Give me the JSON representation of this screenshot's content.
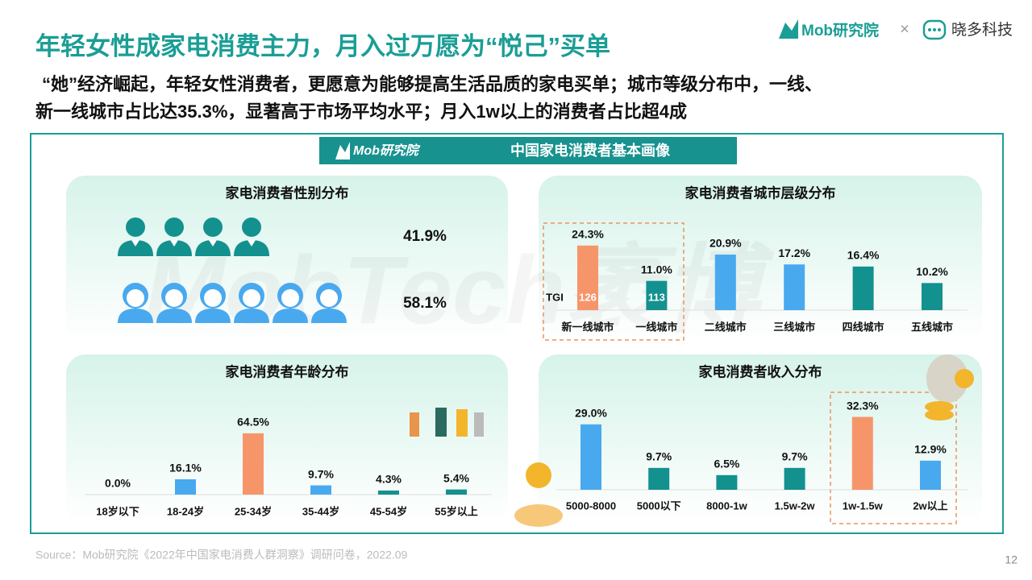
{
  "header": {
    "title": "年轻女性成家电消费主力，月入过万愿为“悦己”买单",
    "subtitle_lines": [
      "“她”经济崛起，年轻女性消费者，更愿意为能够提高生活品质的家电买单；城市等级分布中，一线、",
      "新一线城市占比达35.3%，显著高于市场平均水平；月入1w以上的消费者占比超4成"
    ],
    "brand": "Mob研究院",
    "separator": "×",
    "partner": "晓多科技"
  },
  "panel": {
    "title": "中国家电消费者基本画像",
    "brand": "Mob研究院",
    "watermark": "MobTech袤博"
  },
  "chart_data": [
    {
      "type": "pictogram",
      "title": "家电消费者性别分布",
      "categories": [
        null,
        null
      ],
      "values": [
        41.9,
        58.1
      ],
      "value_labels": [
        "41.9%",
        "58.1%"
      ],
      "colors": [
        "#13918f",
        "#49a9ef"
      ]
    },
    {
      "type": "bar",
      "title": "家电消费者城市层级分布",
      "categories": [
        "新一线城市",
        "一线城市",
        "二线城市",
        "三线城市",
        "四线城市",
        "五线城市"
      ],
      "values": [
        24.3,
        11.0,
        20.9,
        17.2,
        16.4,
        10.2
      ],
      "value_labels": [
        "24.3%",
        "11.0%",
        "20.9%",
        "17.2%",
        "16.4%",
        "10.2%"
      ],
      "colors": [
        "#f7956a",
        "#13918f",
        "#49a9ef",
        "#49a9ef",
        "#13918f",
        "#13918f"
      ],
      "tgi_label": "TGI",
      "tgi": [
        126,
        113,
        null,
        null,
        null,
        null
      ]
    },
    {
      "type": "bar",
      "title": "家电消费者年龄分布",
      "categories": [
        "18岁以下",
        "18-24岁",
        "25-34岁",
        "35-44岁",
        "45-54岁",
        "55岁以上"
      ],
      "values": [
        0.0,
        16.1,
        64.5,
        9.7,
        4.3,
        5.4
      ],
      "value_labels": [
        "0.0%",
        "16.1%",
        "64.5%",
        "9.7%",
        "4.3%",
        "5.4%"
      ],
      "colors": [
        "#49a9ef",
        "#49a9ef",
        "#f7956a",
        "#49a9ef",
        "#13918f",
        "#13918f"
      ]
    },
    {
      "type": "bar",
      "title": "家电消费者收入分布",
      "categories": [
        "5000-8000",
        "5000以下",
        "8000-1w",
        "1.5w-2w",
        "1w-1.5w",
        "2w以上"
      ],
      "values": [
        29.0,
        9.7,
        6.5,
        9.7,
        32.3,
        12.9
      ],
      "value_labels": [
        "29.0%",
        "9.7%",
        "6.5%",
        "9.7%",
        "32.3%",
        "12.9%"
      ],
      "colors": [
        "#49a9ef",
        "#13918f",
        "#13918f",
        "#13918f",
        "#f7956a",
        "#49a9ef"
      ]
    }
  ],
  "footer": {
    "source": "Source：Mob研究院《2022年中国家电消费人群洞察》调研问卷，2022.09",
    "page": "12"
  }
}
